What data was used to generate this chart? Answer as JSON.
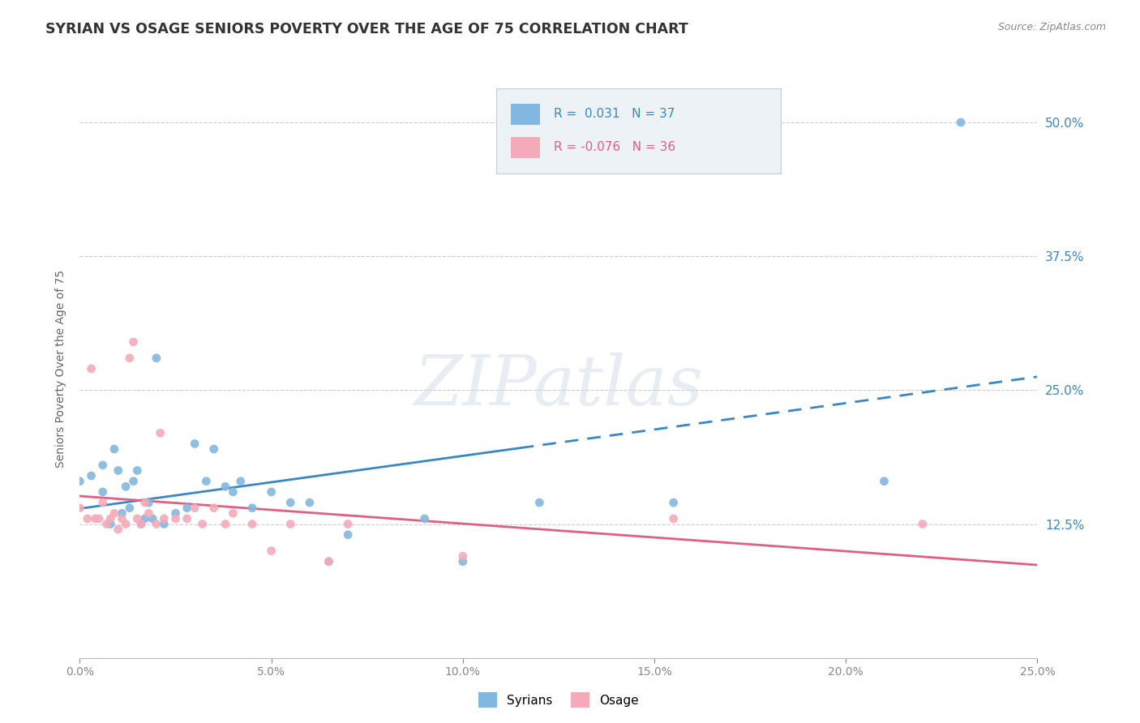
{
  "title": "SYRIAN VS OSAGE SENIORS POVERTY OVER THE AGE OF 75 CORRELATION CHART",
  "source": "Source: ZipAtlas.com",
  "ylabel": "Seniors Poverty Over the Age of 75",
  "ytick_vals": [
    0.125,
    0.25,
    0.375,
    0.5
  ],
  "ytick_labels": [
    "12.5%",
    "25.0%",
    "37.5%",
    "50.0%"
  ],
  "xtick_vals": [
    0.0,
    0.05,
    0.1,
    0.15,
    0.2,
    0.25
  ],
  "xtick_labels": [
    "0.0%",
    "5.0%",
    "10.0%",
    "15.0%",
    "20.0%",
    "25.0%"
  ],
  "xmin": 0.0,
  "xmax": 0.25,
  "ymin": 0.0,
  "ymax": 0.54,
  "blue_scatter_color": "#82b8e0",
  "pink_scatter_color": "#f4aab8",
  "blue_line_color": "#3a87c8",
  "pink_line_color": "#e06080",
  "watermark": "ZIPatlas",
  "legend_label_blue": "Syrians",
  "legend_label_pink": "Osage",
  "syrians_x": [
    0.0,
    0.003,
    0.006,
    0.006,
    0.008,
    0.009,
    0.01,
    0.011,
    0.012,
    0.013,
    0.014,
    0.015,
    0.016,
    0.017,
    0.018,
    0.019,
    0.02,
    0.022,
    0.025,
    0.028,
    0.03,
    0.033,
    0.035,
    0.038,
    0.04,
    0.042,
    0.045,
    0.05,
    0.055,
    0.06,
    0.065,
    0.07,
    0.09,
    0.1,
    0.12,
    0.155,
    0.21,
    0.23
  ],
  "syrians_y": [
    0.165,
    0.17,
    0.18,
    0.155,
    0.125,
    0.195,
    0.175,
    0.135,
    0.16,
    0.14,
    0.165,
    0.175,
    0.125,
    0.13,
    0.145,
    0.13,
    0.28,
    0.125,
    0.135,
    0.14,
    0.2,
    0.165,
    0.195,
    0.16,
    0.155,
    0.165,
    0.14,
    0.155,
    0.145,
    0.145,
    0.09,
    0.115,
    0.13,
    0.09,
    0.145,
    0.145,
    0.165,
    0.5
  ],
  "osage_x": [
    0.0,
    0.002,
    0.003,
    0.004,
    0.005,
    0.006,
    0.007,
    0.008,
    0.009,
    0.01,
    0.011,
    0.012,
    0.013,
    0.014,
    0.015,
    0.016,
    0.017,
    0.018,
    0.02,
    0.021,
    0.022,
    0.025,
    0.028,
    0.03,
    0.032,
    0.035,
    0.038,
    0.04,
    0.045,
    0.05,
    0.055,
    0.065,
    0.07,
    0.1,
    0.155,
    0.22
  ],
  "osage_y": [
    0.14,
    0.13,
    0.27,
    0.13,
    0.13,
    0.145,
    0.125,
    0.13,
    0.135,
    0.12,
    0.13,
    0.125,
    0.28,
    0.295,
    0.13,
    0.125,
    0.145,
    0.135,
    0.125,
    0.21,
    0.13,
    0.13,
    0.13,
    0.14,
    0.125,
    0.14,
    0.125,
    0.135,
    0.125,
    0.1,
    0.125,
    0.09,
    0.125,
    0.095,
    0.13,
    0.125
  ],
  "trend_break_x": 0.115
}
